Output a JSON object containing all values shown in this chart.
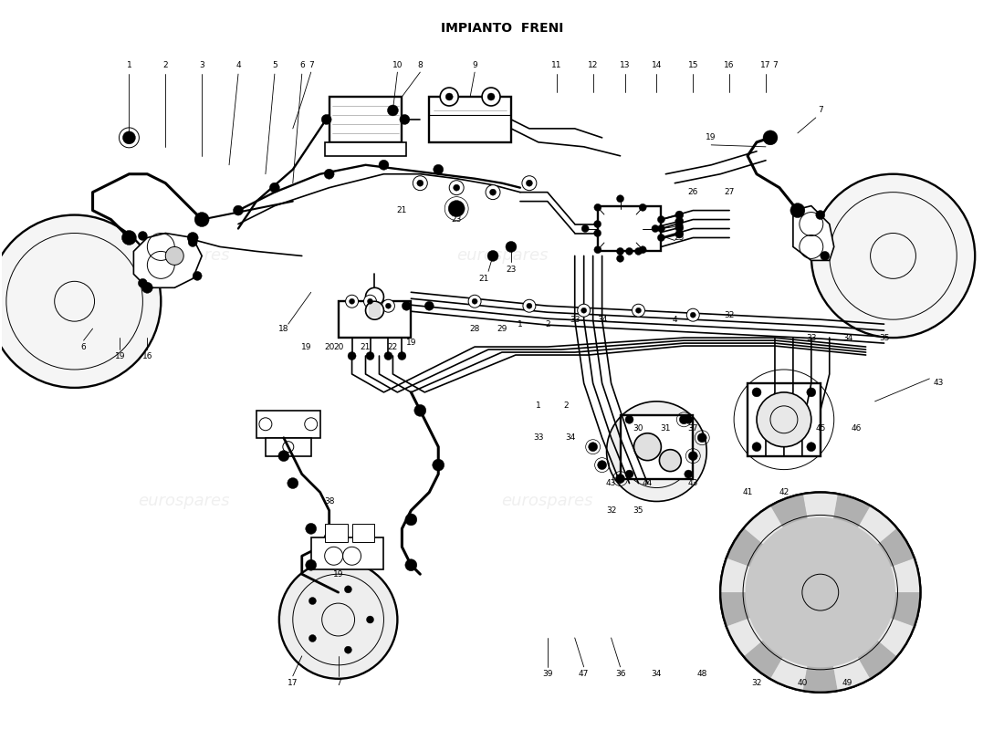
{
  "title": "IMPIANTO  FRENI",
  "bg_color": "#ffffff",
  "watermark_text": "eurospares",
  "line_color": "#000000",
  "line_width": 1.2,
  "thin_line": 0.7,
  "label_fontsize": 6.5,
  "title_fontsize": 10,
  "fig_w": 11.0,
  "fig_h": 8.0,
  "dpi": 100,
  "xlim": [
    0,
    110
  ],
  "ylim": [
    0,
    80
  ]
}
